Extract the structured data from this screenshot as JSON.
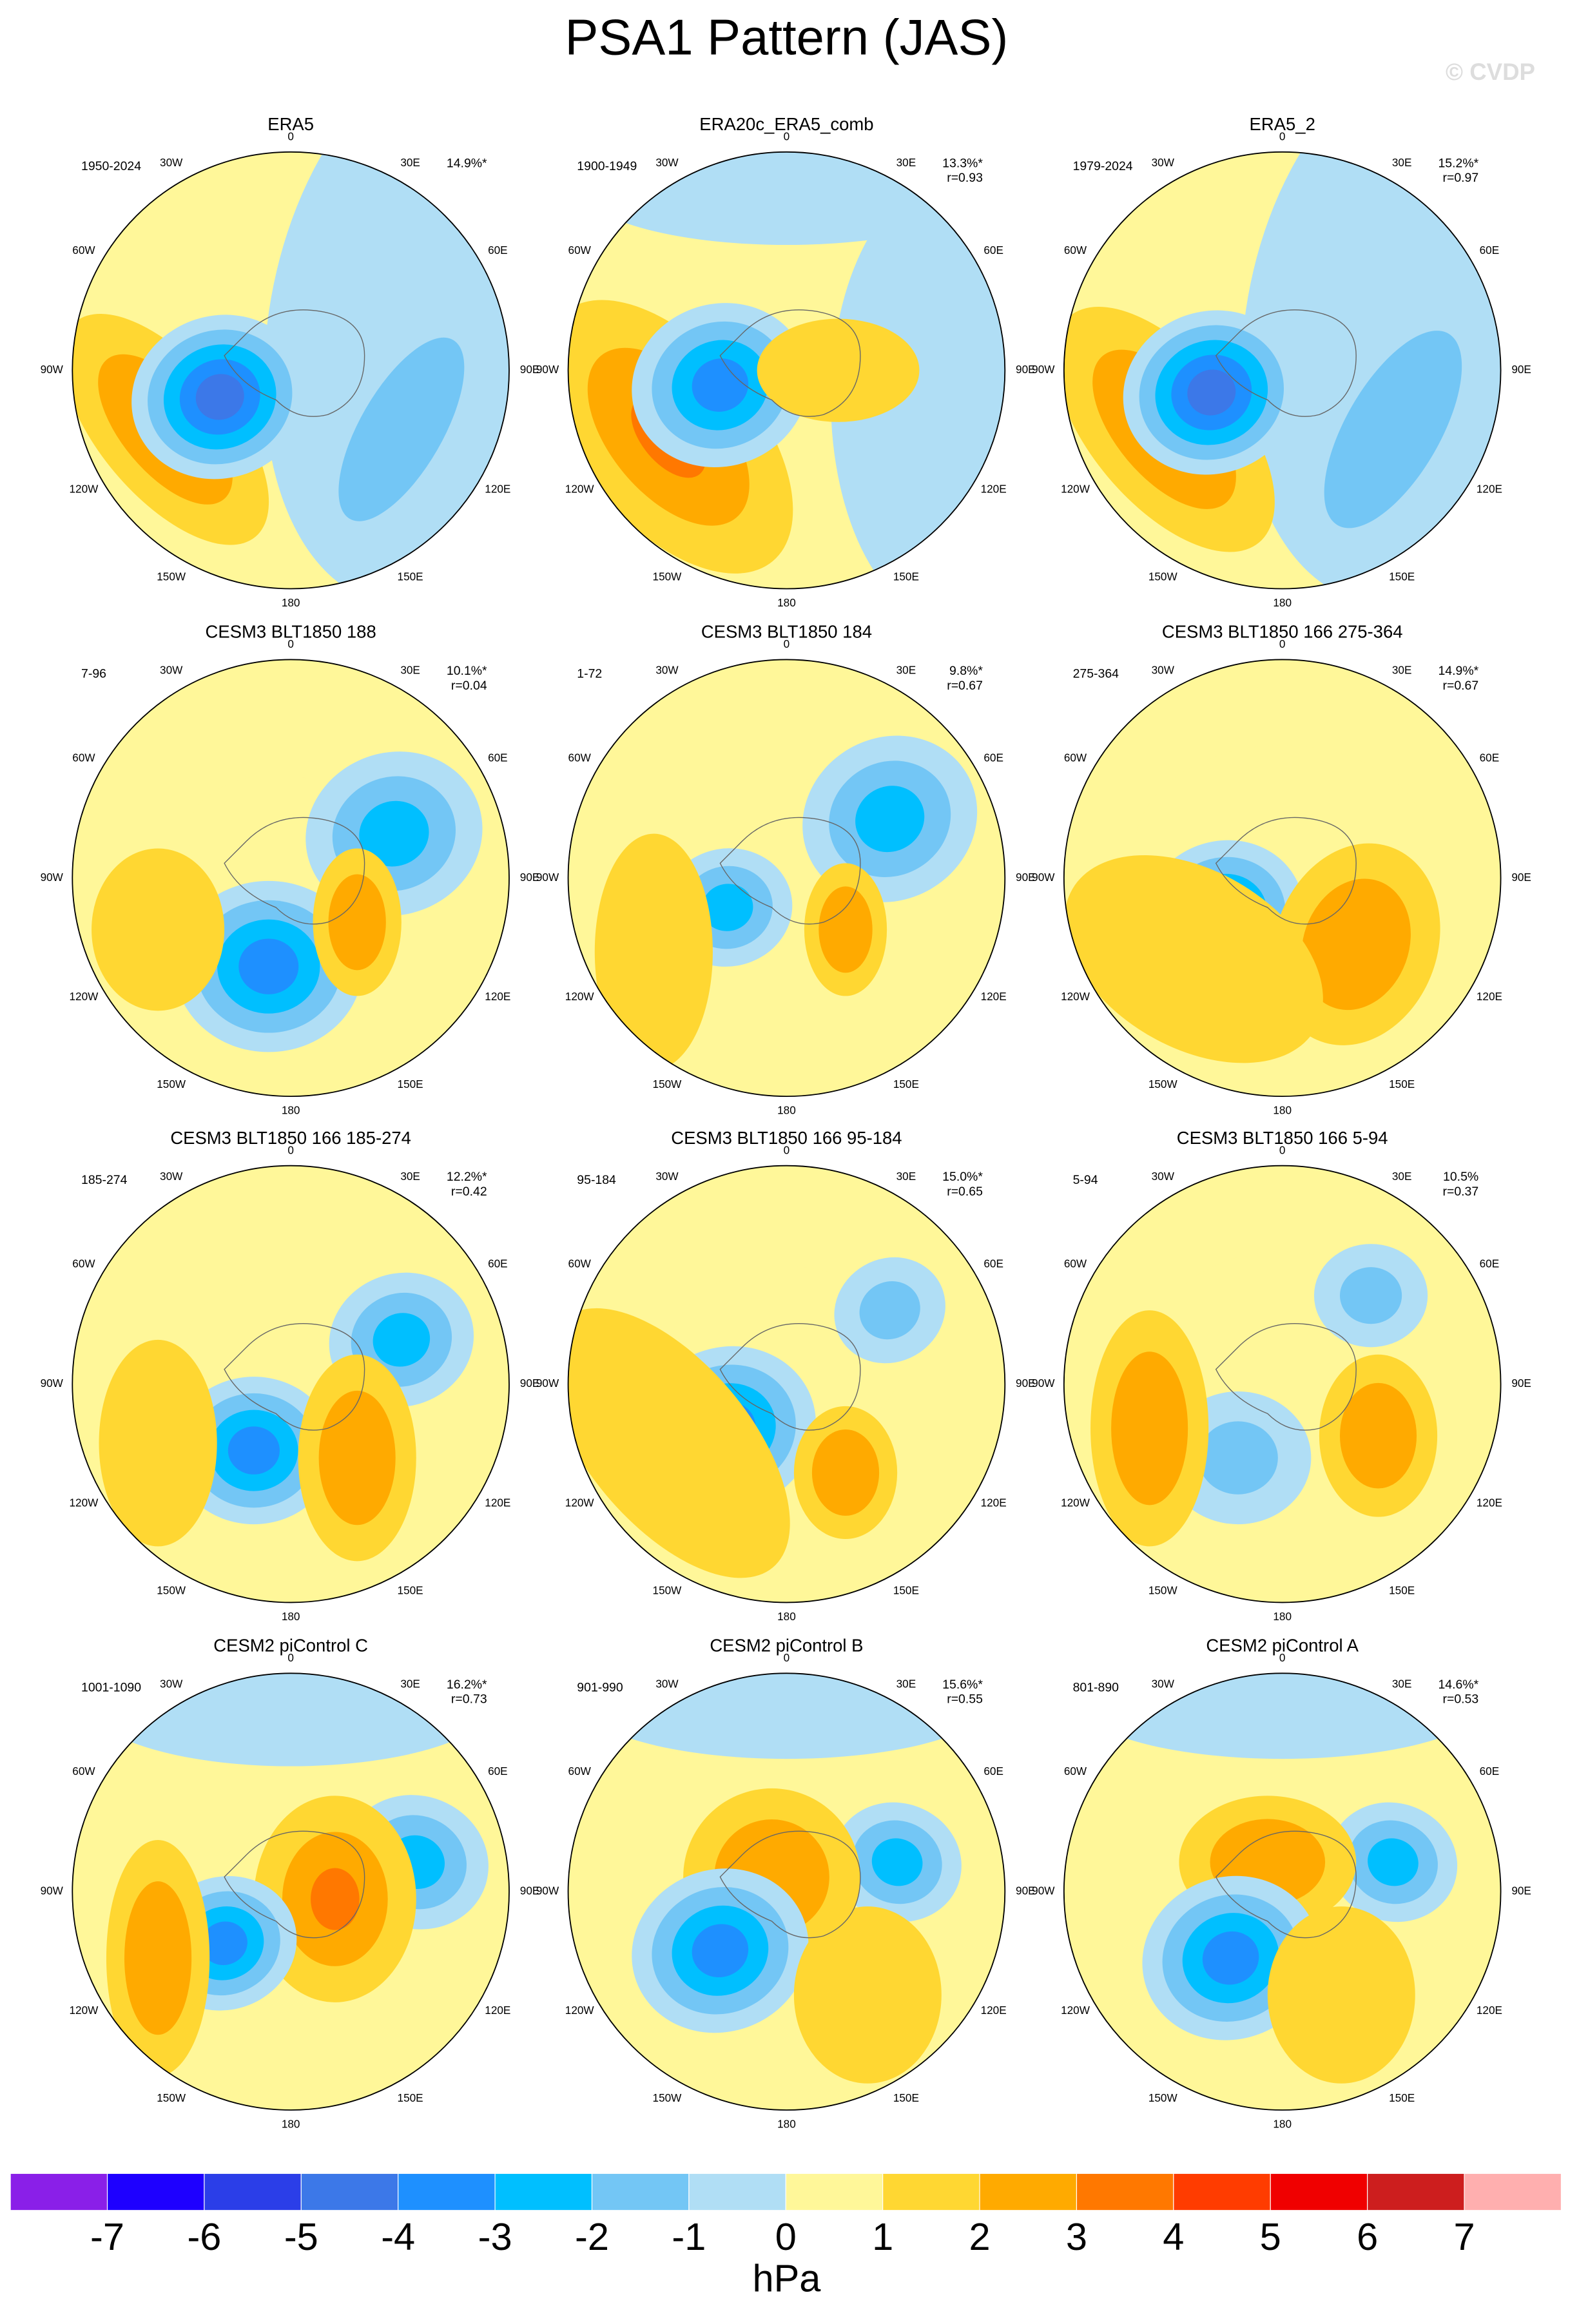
{
  "title": "PSA1 Pattern (JAS)",
  "watermark": "© CVDP",
  "lon_labels": [
    "0",
    "30E",
    "60E",
    "90E",
    "120E",
    "150E",
    "180",
    "150W",
    "120W",
    "90W",
    "60W",
    "30W"
  ],
  "panels": [
    {
      "title": "ERA5",
      "period": "1950-2024",
      "pct": "14.9%*"
    },
    {
      "title": "ERA20c_ERA5_comb",
      "period": "1900-1949",
      "pct": "13.3%*",
      "r": "r=0.93"
    },
    {
      "title": "ERA5_2",
      "period": "1979-2024",
      "pct": "15.2%*",
      "r": "r=0.97"
    },
    {
      "title": "CESM3 BLT1850 188",
      "period": "7-96",
      "pct": "10.1%*",
      "r": "r=0.04"
    },
    {
      "title": "CESM3 BLT1850 184",
      "period": "1-72",
      "pct": "9.8%*",
      "r": "r=0.67"
    },
    {
      "title": "CESM3 BLT1850 166 275-364",
      "period": "275-364",
      "pct": "14.9%*",
      "r": "r=0.67"
    },
    {
      "title": "CESM3 BLT1850 166 185-274",
      "period": "185-274",
      "pct": "12.2%*",
      "r": "r=0.42"
    },
    {
      "title": "CESM3 BLT1850 166 95-184",
      "period": "95-184",
      "pct": "15.0%*",
      "r": "r=0.65"
    },
    {
      "title": "CESM3 BLT1850 166 5-94",
      "period": "5-94",
      "pct": "10.5%",
      "r": "r=0.37"
    },
    {
      "title": "CESM2 piControl C",
      "period": "1001-1090",
      "pct": "16.2%*",
      "r": "r=0.73"
    },
    {
      "title": "CESM2 piControl B",
      "period": "901-990",
      "pct": "15.6%*",
      "r": "r=0.55"
    },
    {
      "title": "CESM2 piControl A",
      "period": "801-890",
      "pct": "14.6%*",
      "r": "r=0.53"
    }
  ],
  "colorbar": {
    "levels": [
      -7,
      -6,
      -5,
      -4,
      -3,
      -2,
      -1,
      0,
      1,
      2,
      3,
      4,
      5,
      6,
      7
    ],
    "colors": [
      "#8A1FE8",
      "#1E00FF",
      "#2B3EE8",
      "#3C78E8",
      "#1E90FF",
      "#00BFFF",
      "#73C6F5",
      "#B0DEF5",
      "#FFF799",
      "#FFD732",
      "#FFAA00",
      "#FF7800",
      "#FF3C00",
      "#F00000",
      "#CD1E1E",
      "#FFAFAF"
    ],
    "unit": "hPa"
  }
}
